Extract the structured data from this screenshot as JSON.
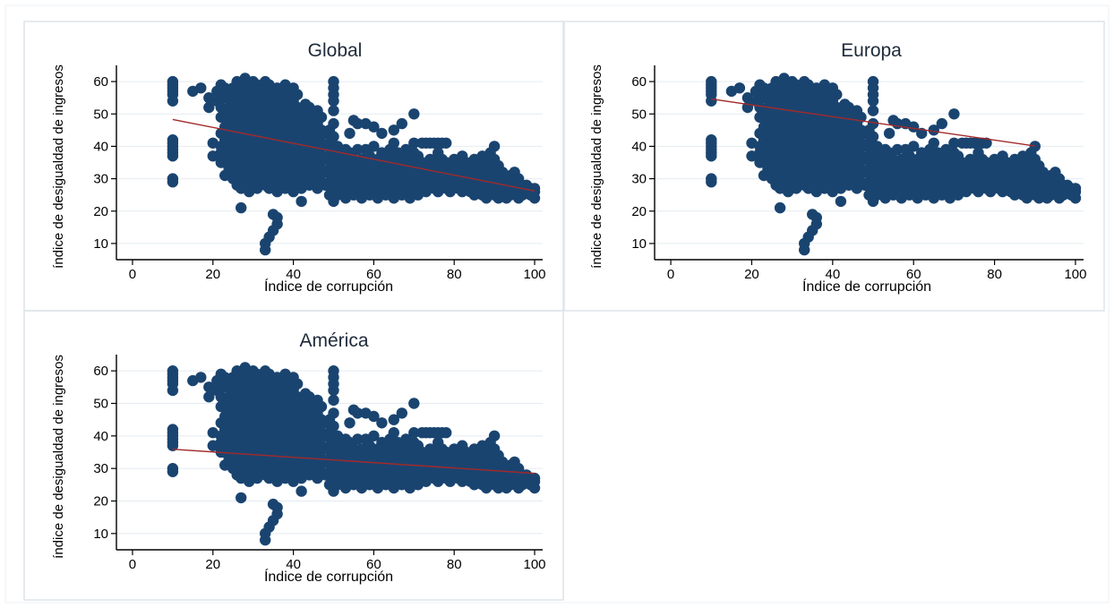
{
  "colors": {
    "marker": "#1a4470",
    "fit_line": "#a32a2a",
    "grid": "#e4ebf1",
    "panel_border": "#dde4ea",
    "axis": "#000000",
    "text": "#1e2a3a"
  },
  "chart_data": [
    {
      "type": "scatter",
      "title": "Global",
      "xlabel": "Índice de corrupción",
      "ylabel": "índice de desigualdad de ingresos",
      "xlim": [
        -4,
        102
      ],
      "ylim": [
        5,
        65
      ],
      "xticks": [
        0,
        20,
        40,
        60,
        80,
        100
      ],
      "yticks": [
        10,
        20,
        30,
        40,
        50,
        60
      ],
      "grid": true,
      "legend": "none",
      "fit_line": {
        "x": [
          10,
          100
        ],
        "y": [
          48.3,
          26.2
        ]
      }
    },
    {
      "type": "scatter",
      "title": "Europa",
      "xlabel": "Índice de corrupción",
      "ylabel": "índice de desigualdad de ingresos",
      "xlim": [
        -4,
        102
      ],
      "ylim": [
        5,
        65
      ],
      "xticks": [
        0,
        20,
        40,
        60,
        80,
        100
      ],
      "yticks": [
        10,
        20,
        30,
        40,
        50,
        60
      ],
      "grid": true,
      "legend": "none",
      "fit_line": {
        "x": [
          10,
          90
        ],
        "y": [
          54.6,
          40.1
        ]
      }
    },
    {
      "type": "scatter",
      "title": "América",
      "xlabel": "Índice de corrupción",
      "ylabel": "índice de desigualdad de ingresos",
      "xlim": [
        -4,
        102
      ],
      "ylim": [
        5,
        65
      ],
      "xticks": [
        0,
        20,
        40,
        60,
        80,
        100
      ],
      "yticks": [
        10,
        20,
        30,
        40,
        50,
        60
      ],
      "grid": true,
      "legend": "none",
      "fit_line": {
        "x": [
          10,
          100
        ],
        "y": [
          35.9,
          28.5
        ]
      }
    }
  ],
  "scatter_points": [
    [
      10,
      29
    ],
    [
      10,
      30
    ],
    [
      10,
      37
    ],
    [
      10,
      38
    ],
    [
      10,
      39
    ],
    [
      10,
      40
    ],
    [
      10,
      41
    ],
    [
      10,
      42
    ],
    [
      10,
      54
    ],
    [
      10,
      56
    ],
    [
      10,
      57
    ],
    [
      10,
      58
    ],
    [
      10,
      59
    ],
    [
      10,
      60
    ],
    [
      15,
      57
    ],
    [
      17,
      58
    ],
    [
      19,
      52
    ],
    [
      19,
      55
    ],
    [
      20,
      37
    ],
    [
      20,
      41
    ],
    [
      21,
      54
    ],
    [
      21,
      57
    ],
    [
      22,
      35
    ],
    [
      22,
      38
    ],
    [
      22,
      40
    ],
    [
      22,
      44
    ],
    [
      22,
      49
    ],
    [
      22,
      52
    ],
    [
      22,
      56
    ],
    [
      22,
      59
    ],
    [
      23,
      31
    ],
    [
      23,
      35
    ],
    [
      23,
      39
    ],
    [
      23,
      42
    ],
    [
      23,
      46
    ],
    [
      23,
      51
    ],
    [
      23,
      55
    ],
    [
      23,
      58
    ],
    [
      24,
      33
    ],
    [
      24,
      37
    ],
    [
      24,
      40
    ],
    [
      24,
      44
    ],
    [
      24,
      48
    ],
    [
      24,
      52
    ],
    [
      24,
      57
    ],
    [
      25,
      30
    ],
    [
      25,
      34
    ],
    [
      25,
      38
    ],
    [
      25,
      42
    ],
    [
      25,
      46
    ],
    [
      25,
      50
    ],
    [
      25,
      54
    ],
    [
      25,
      58
    ],
    [
      26,
      28
    ],
    [
      26,
      32
    ],
    [
      26,
      36
    ],
    [
      26,
      40
    ],
    [
      26,
      44
    ],
    [
      26,
      48
    ],
    [
      26,
      52
    ],
    [
      26,
      56
    ],
    [
      26,
      60
    ],
    [
      27,
      21
    ],
    [
      27,
      27
    ],
    [
      27,
      31
    ],
    [
      27,
      35
    ],
    [
      27,
      39
    ],
    [
      27,
      43
    ],
    [
      27,
      47
    ],
    [
      27,
      51
    ],
    [
      27,
      55
    ],
    [
      27,
      59
    ],
    [
      28,
      29
    ],
    [
      28,
      33
    ],
    [
      28,
      37
    ],
    [
      28,
      41
    ],
    [
      28,
      45
    ],
    [
      28,
      49
    ],
    [
      28,
      53
    ],
    [
      28,
      57
    ],
    [
      28,
      61
    ],
    [
      29,
      26
    ],
    [
      29,
      30
    ],
    [
      29,
      34
    ],
    [
      29,
      38
    ],
    [
      29,
      42
    ],
    [
      29,
      46
    ],
    [
      29,
      50
    ],
    [
      29,
      54
    ],
    [
      29,
      58
    ],
    [
      30,
      28
    ],
    [
      30,
      32
    ],
    [
      30,
      36
    ],
    [
      30,
      40
    ],
    [
      30,
      44
    ],
    [
      30,
      48
    ],
    [
      30,
      52
    ],
    [
      30,
      56
    ],
    [
      30,
      60
    ],
    [
      31,
      27
    ],
    [
      31,
      31
    ],
    [
      31,
      35
    ],
    [
      31,
      39
    ],
    [
      31,
      43
    ],
    [
      31,
      47
    ],
    [
      31,
      51
    ],
    [
      31,
      55
    ],
    [
      31,
      59
    ],
    [
      32,
      29
    ],
    [
      32,
      33
    ],
    [
      32,
      37
    ],
    [
      32,
      41
    ],
    [
      32,
      45
    ],
    [
      32,
      49
    ],
    [
      32,
      53
    ],
    [
      32,
      57
    ],
    [
      33,
      8
    ],
    [
      33,
      10
    ],
    [
      33,
      28
    ],
    [
      33,
      32
    ],
    [
      33,
      36
    ],
    [
      33,
      40
    ],
    [
      33,
      44
    ],
    [
      33,
      48
    ],
    [
      33,
      52
    ],
    [
      33,
      56
    ],
    [
      33,
      60
    ],
    [
      34,
      12
    ],
    [
      34,
      27
    ],
    [
      34,
      31
    ],
    [
      34,
      35
    ],
    [
      34,
      39
    ],
    [
      34,
      43
    ],
    [
      34,
      47
    ],
    [
      34,
      51
    ],
    [
      34,
      55
    ],
    [
      34,
      59
    ],
    [
      35,
      14
    ],
    [
      35,
      19
    ],
    [
      35,
      29
    ],
    [
      35,
      33
    ],
    [
      35,
      37
    ],
    [
      35,
      41
    ],
    [
      35,
      45
    ],
    [
      35,
      49
    ],
    [
      35,
      53
    ],
    [
      35,
      57
    ],
    [
      36,
      16
    ],
    [
      36,
      18
    ],
    [
      36,
      26
    ],
    [
      36,
      30
    ],
    [
      36,
      34
    ],
    [
      36,
      38
    ],
    [
      36,
      42
    ],
    [
      36,
      46
    ],
    [
      36,
      50
    ],
    [
      36,
      54
    ],
    [
      36,
      58
    ],
    [
      37,
      28
    ],
    [
      37,
      32
    ],
    [
      37,
      36
    ],
    [
      37,
      40
    ],
    [
      37,
      44
    ],
    [
      37,
      48
    ],
    [
      37,
      52
    ],
    [
      37,
      56
    ],
    [
      38,
      27
    ],
    [
      38,
      31
    ],
    [
      38,
      35
    ],
    [
      38,
      39
    ],
    [
      38,
      43
    ],
    [
      38,
      47
    ],
    [
      38,
      51
    ],
    [
      38,
      55
    ],
    [
      38,
      59
    ],
    [
      39,
      29
    ],
    [
      39,
      33
    ],
    [
      39,
      37
    ],
    [
      39,
      41
    ],
    [
      39,
      45
    ],
    [
      39,
      49
    ],
    [
      39,
      53
    ],
    [
      39,
      57
    ],
    [
      40,
      26
    ],
    [
      40,
      30
    ],
    [
      40,
      34
    ],
    [
      40,
      38
    ],
    [
      40,
      42
    ],
    [
      40,
      46
    ],
    [
      40,
      50
    ],
    [
      40,
      54
    ],
    [
      40,
      58
    ],
    [
      41,
      28
    ],
    [
      41,
      32
    ],
    [
      41,
      36
    ],
    [
      41,
      40
    ],
    [
      41,
      44
    ],
    [
      41,
      48
    ],
    [
      41,
      52
    ],
    [
      41,
      56
    ],
    [
      42,
      23
    ],
    [
      42,
      27
    ],
    [
      42,
      31
    ],
    [
      42,
      35
    ],
    [
      42,
      39
    ],
    [
      42,
      43
    ],
    [
      42,
      47
    ],
    [
      42,
      51
    ],
    [
      43,
      29
    ],
    [
      43,
      33
    ],
    [
      43,
      37
    ],
    [
      43,
      41
    ],
    [
      43,
      45
    ],
    [
      43,
      49
    ],
    [
      43,
      53
    ],
    [
      44,
      28
    ],
    [
      44,
      32
    ],
    [
      44,
      36
    ],
    [
      44,
      40
    ],
    [
      44,
      44
    ],
    [
      44,
      48
    ],
    [
      44,
      52
    ],
    [
      45,
      30
    ],
    [
      45,
      34
    ],
    [
      45,
      38
    ],
    [
      45,
      42
    ],
    [
      45,
      46
    ],
    [
      45,
      50
    ],
    [
      46,
      27
    ],
    [
      46,
      31
    ],
    [
      46,
      35
    ],
    [
      46,
      39
    ],
    [
      46,
      43
    ],
    [
      46,
      47
    ],
    [
      46,
      51
    ],
    [
      47,
      29
    ],
    [
      47,
      33
    ],
    [
      47,
      37
    ],
    [
      47,
      41
    ],
    [
      47,
      45
    ],
    [
      47,
      49
    ],
    [
      48,
      28
    ],
    [
      48,
      32
    ],
    [
      48,
      36
    ],
    [
      48,
      40
    ],
    [
      48,
      44
    ],
    [
      49,
      25
    ],
    [
      49,
      29
    ],
    [
      49,
      33
    ],
    [
      49,
      37
    ],
    [
      49,
      41
    ],
    [
      49,
      45
    ],
    [
      50,
      23
    ],
    [
      50,
      27
    ],
    [
      50,
      31
    ],
    [
      50,
      35
    ],
    [
      50,
      39
    ],
    [
      50,
      43
    ],
    [
      50,
      47
    ],
    [
      50,
      51
    ],
    [
      50,
      54
    ],
    [
      50,
      56
    ],
    [
      50,
      58
    ],
    [
      50,
      60
    ],
    [
      51,
      25
    ],
    [
      51,
      29
    ],
    [
      51,
      33
    ],
    [
      51,
      36
    ],
    [
      51,
      40
    ],
    [
      52,
      27
    ],
    [
      52,
      31
    ],
    [
      52,
      35
    ],
    [
      52,
      38
    ],
    [
      53,
      24
    ],
    [
      53,
      28
    ],
    [
      53,
      32
    ],
    [
      53,
      36
    ],
    [
      53,
      39
    ],
    [
      54,
      26
    ],
    [
      54,
      30
    ],
    [
      54,
      34
    ],
    [
      54,
      38
    ],
    [
      54,
      44
    ],
    [
      55,
      25
    ],
    [
      55,
      29
    ],
    [
      55,
      33
    ],
    [
      55,
      36
    ],
    [
      55,
      48
    ],
    [
      56,
      27
    ],
    [
      56,
      31
    ],
    [
      56,
      35
    ],
    [
      56,
      39
    ],
    [
      56,
      47
    ],
    [
      57,
      24
    ],
    [
      57,
      28
    ],
    [
      57,
      32
    ],
    [
      57,
      36
    ],
    [
      58,
      26
    ],
    [
      58,
      30
    ],
    [
      58,
      34
    ],
    [
      58,
      39
    ],
    [
      58,
      47
    ],
    [
      59,
      25
    ],
    [
      59,
      29
    ],
    [
      59,
      33
    ],
    [
      59,
      37
    ],
    [
      60,
      27
    ],
    [
      60,
      31
    ],
    [
      60,
      35
    ],
    [
      60,
      40
    ],
    [
      60,
      46
    ],
    [
      61,
      24
    ],
    [
      61,
      28
    ],
    [
      61,
      32
    ],
    [
      61,
      36
    ],
    [
      62,
      26
    ],
    [
      62,
      30
    ],
    [
      62,
      34
    ],
    [
      62,
      38
    ],
    [
      62,
      44
    ],
    [
      63,
      25
    ],
    [
      63,
      29
    ],
    [
      63,
      33
    ],
    [
      63,
      37
    ],
    [
      64,
      27
    ],
    [
      64,
      31
    ],
    [
      64,
      35
    ],
    [
      64,
      39
    ],
    [
      65,
      24
    ],
    [
      65,
      28
    ],
    [
      65,
      32
    ],
    [
      65,
      36
    ],
    [
      65,
      41
    ],
    [
      65,
      45
    ],
    [
      66,
      26
    ],
    [
      66,
      30
    ],
    [
      66,
      34
    ],
    [
      66,
      38
    ],
    [
      67,
      25
    ],
    [
      67,
      29
    ],
    [
      67,
      33
    ],
    [
      67,
      37
    ],
    [
      67,
      47
    ],
    [
      68,
      27
    ],
    [
      68,
      31
    ],
    [
      68,
      35
    ],
    [
      68,
      39
    ],
    [
      69,
      24
    ],
    [
      69,
      28
    ],
    [
      69,
      32
    ],
    [
      69,
      36
    ],
    [
      70,
      26
    ],
    [
      70,
      30
    ],
    [
      70,
      34
    ],
    [
      70,
      38
    ],
    [
      70,
      41
    ],
    [
      70,
      50
    ],
    [
      71,
      25
    ],
    [
      71,
      29
    ],
    [
      71,
      33
    ],
    [
      71,
      37
    ],
    [
      72,
      27
    ],
    [
      72,
      31
    ],
    [
      72,
      35
    ],
    [
      72,
      41
    ],
    [
      73,
      26
    ],
    [
      73,
      30
    ],
    [
      73,
      34
    ],
    [
      73,
      41
    ],
    [
      74,
      28
    ],
    [
      74,
      32
    ],
    [
      74,
      36
    ],
    [
      74,
      41
    ],
    [
      75,
      27
    ],
    [
      75,
      31
    ],
    [
      75,
      35
    ],
    [
      75,
      41
    ],
    [
      76,
      26
    ],
    [
      76,
      30
    ],
    [
      76,
      34
    ],
    [
      76,
      38
    ],
    [
      76,
      41
    ],
    [
      77,
      28
    ],
    [
      77,
      32
    ],
    [
      77,
      36
    ],
    [
      77,
      41
    ],
    [
      78,
      27
    ],
    [
      78,
      31
    ],
    [
      78,
      35
    ],
    [
      78,
      41
    ],
    [
      79,
      26
    ],
    [
      79,
      30
    ],
    [
      79,
      34
    ],
    [
      80,
      28
    ],
    [
      80,
      32
    ],
    [
      80,
      36
    ],
    [
      81,
      27
    ],
    [
      81,
      31
    ],
    [
      81,
      35
    ],
    [
      82,
      26
    ],
    [
      82,
      29
    ],
    [
      82,
      33
    ],
    [
      82,
      37
    ],
    [
      83,
      27
    ],
    [
      83,
      31
    ],
    [
      83,
      35
    ],
    [
      84,
      26
    ],
    [
      84,
      30
    ],
    [
      84,
      34
    ],
    [
      85,
      25
    ],
    [
      85,
      28
    ],
    [
      85,
      32
    ],
    [
      85,
      36
    ],
    [
      86,
      26
    ],
    [
      86,
      30
    ],
    [
      86,
      34
    ],
    [
      87,
      25
    ],
    [
      87,
      29
    ],
    [
      87,
      33
    ],
    [
      87,
      37
    ],
    [
      88,
      24
    ],
    [
      88,
      27
    ],
    [
      88,
      31
    ],
    [
      88,
      35
    ],
    [
      89,
      26
    ],
    [
      89,
      30
    ],
    [
      89,
      34
    ],
    [
      89,
      38
    ],
    [
      90,
      25
    ],
    [
      90,
      28
    ],
    [
      90,
      32
    ],
    [
      90,
      36
    ],
    [
      90,
      40
    ],
    [
      91,
      24
    ],
    [
      91,
      27
    ],
    [
      91,
      31
    ],
    [
      91,
      34
    ],
    [
      92,
      25
    ],
    [
      92,
      29
    ],
    [
      92,
      32
    ],
    [
      93,
      24
    ],
    [
      93,
      27
    ],
    [
      93,
      30
    ],
    [
      94,
      25
    ],
    [
      94,
      28
    ],
    [
      94,
      31
    ],
    [
      95,
      26
    ],
    [
      95,
      29
    ],
    [
      95,
      32
    ],
    [
      96,
      24
    ],
    [
      96,
      27
    ],
    [
      96,
      30
    ],
    [
      97,
      25
    ],
    [
      97,
      28
    ],
    [
      98,
      26
    ],
    [
      98,
      28
    ],
    [
      99,
      25
    ],
    [
      99,
      27
    ],
    [
      100,
      24
    ],
    [
      100,
      26
    ],
    [
      100,
      27
    ]
  ]
}
